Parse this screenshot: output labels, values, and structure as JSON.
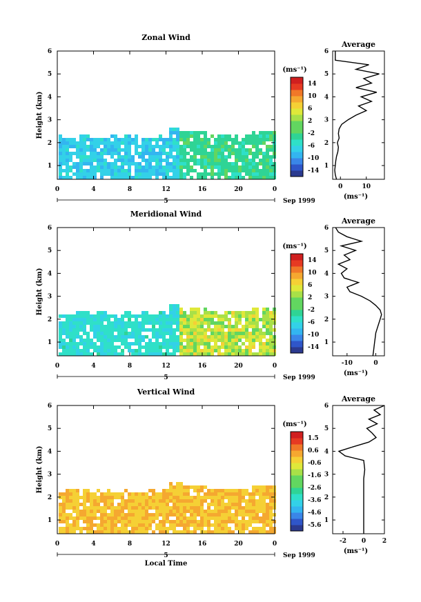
{
  "chart_data": [
    {
      "type": "heatmap",
      "title": "Zonal Wind",
      "xlabel": "",
      "ylabel": "Height (km)",
      "xlim": [
        0,
        24
      ],
      "ylim": [
        0.4,
        6
      ],
      "xticks": [
        "0",
        "4",
        "8",
        "12",
        "16",
        "20",
        "0"
      ],
      "yticks": [
        "1",
        "2",
        "3",
        "4",
        "5",
        "6"
      ],
      "date_marker": "5",
      "date_label": "Sep 1999",
      "colorbar_unit": "(ms⁻¹)",
      "colorbar_ticks": [
        "14",
        "10",
        "6",
        "2",
        "-2",
        "-6",
        "-10",
        "-14"
      ],
      "colorbar_range": [
        -16,
        16
      ],
      "profile": {
        "title": "Average",
        "xlabel": "(ms⁻¹)",
        "xticks": [
          "0",
          "10"
        ],
        "xlim": [
          -3,
          17
        ],
        "height": [
          0.4,
          0.6,
          0.8,
          1.0,
          1.2,
          1.4,
          1.6,
          1.8,
          2.0,
          2.2,
          2.4,
          2.6,
          2.8,
          3.0,
          3.2,
          3.4,
          3.6,
          3.8,
          4.0,
          4.2,
          4.4,
          4.6,
          4.8,
          5.0,
          5.2,
          5.4,
          5.6,
          5.8,
          6.0
        ],
        "value": [
          -1.5,
          -2.0,
          -2.2,
          -2.0,
          -1.8,
          -1.5,
          -1.0,
          -0.8,
          -1.2,
          -0.5,
          -0.8,
          -0.5,
          0.5,
          3.0,
          6.0,
          10.0,
          7.0,
          12.0,
          8.0,
          14.0,
          6.0,
          12.0,
          9.0,
          15.0,
          6.0,
          11.0,
          -2.0,
          -2.0,
          -2.0
        ]
      }
    },
    {
      "type": "heatmap",
      "title": "Meridional Wind",
      "xlabel": "",
      "ylabel": "Height (km)",
      "xlim": [
        0,
        24
      ],
      "ylim": [
        0.4,
        6
      ],
      "xticks": [
        "0",
        "4",
        "8",
        "12",
        "16",
        "20",
        "0"
      ],
      "yticks": [
        "1",
        "2",
        "3",
        "4",
        "5",
        "6"
      ],
      "date_marker": "5",
      "date_label": "Sep 1999",
      "colorbar_unit": "(ms⁻¹)",
      "colorbar_ticks": [
        "14",
        "10",
        "6",
        "2",
        "-2",
        "-6",
        "-10",
        "-14"
      ],
      "colorbar_range": [
        -16,
        16
      ],
      "profile": {
        "title": "Average",
        "xlabel": "(ms⁻¹)",
        "xticks": [
          "-10",
          "0"
        ],
        "xlim": [
          -15,
          3
        ],
        "height": [
          0.4,
          0.6,
          0.8,
          1.0,
          1.2,
          1.4,
          1.6,
          1.8,
          2.0,
          2.2,
          2.4,
          2.6,
          2.8,
          3.0,
          3.2,
          3.4,
          3.6,
          3.8,
          4.0,
          4.2,
          4.4,
          4.6,
          4.8,
          5.0,
          5.2,
          5.4,
          5.6,
          5.8,
          6.0
        ],
        "value": [
          -1.0,
          -0.8,
          -0.6,
          -0.4,
          -0.2,
          0.0,
          0.5,
          1.0,
          1.5,
          2.0,
          1.5,
          0.0,
          -2.0,
          -5.0,
          -9.0,
          -10.0,
          -6.0,
          -11.0,
          -12.0,
          -10.0,
          -13.0,
          -9.0,
          -11.0,
          -7.0,
          -12.0,
          -5.0,
          -10.0,
          -13.0,
          -14.0
        ]
      }
    },
    {
      "type": "heatmap",
      "title": "Vertical Wind",
      "xlabel": "Local Time",
      "ylabel": "Height (km)",
      "xlim": [
        0,
        24
      ],
      "ylim": [
        0.4,
        6
      ],
      "xticks": [
        "0",
        "4",
        "8",
        "12",
        "16",
        "20",
        "0"
      ],
      "yticks": [
        "1",
        "2",
        "3",
        "4",
        "5",
        "6"
      ],
      "date_marker": "5",
      "date_label": "Sep 1999",
      "colorbar_unit": "(ms⁻¹)",
      "colorbar_ticks": [
        "1.5",
        "0.6",
        "-0.6",
        "-1.6",
        "-2.6",
        "-3.6",
        "-4.6",
        "-5.6"
      ],
      "colorbar_range": [
        -6,
        2
      ],
      "profile": {
        "title": "Average",
        "xlabel": "(ms⁻¹)",
        "xticks": [
          "-2",
          "0",
          "2"
        ],
        "xlim": [
          -3,
          2
        ],
        "height": [
          0.4,
          0.8,
          1.2,
          1.6,
          2.0,
          2.4,
          2.8,
          3.2,
          3.6,
          3.8,
          4.0,
          4.2,
          4.4,
          4.6,
          4.8,
          5.0,
          5.2,
          5.4,
          5.6,
          5.8,
          6.0
        ],
        "value": [
          0.0,
          0.0,
          0.0,
          0.0,
          0.0,
          0.0,
          0.0,
          0.1,
          0.0,
          -1.8,
          -2.4,
          -1.0,
          0.5,
          1.2,
          0.8,
          0.3,
          1.3,
          0.5,
          1.6,
          1.0,
          2.0
        ]
      }
    }
  ]
}
